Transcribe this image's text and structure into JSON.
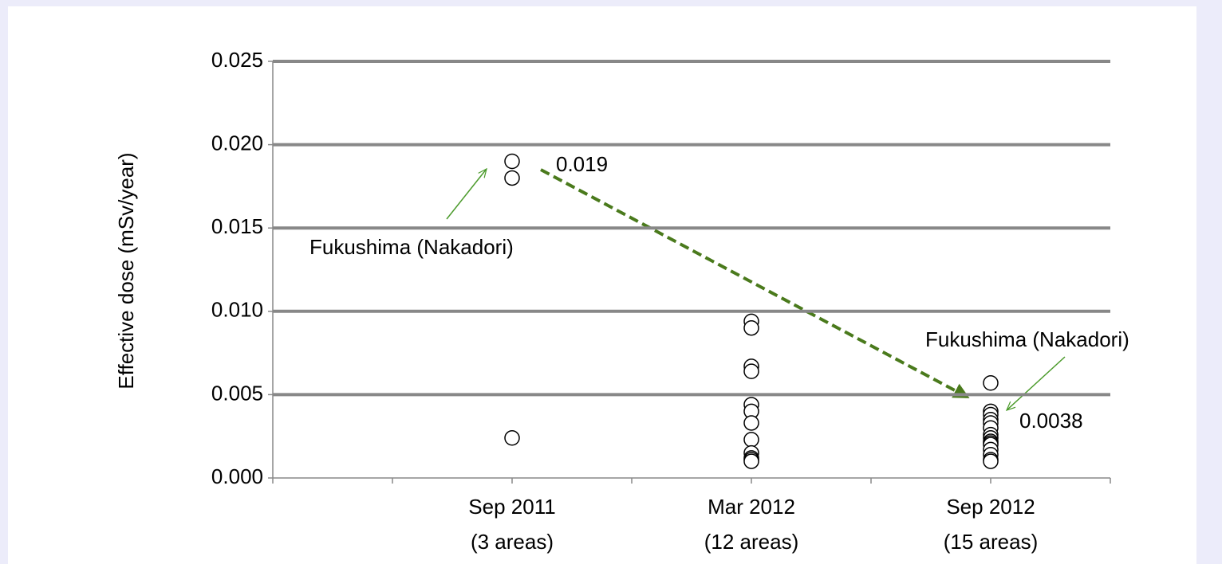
{
  "chart_data": {
    "type": "scatter",
    "y_label": "Effective dose    (mSv/year)",
    "categories": [
      null,
      null,
      [
        "Sep 2011",
        "(3 areas)"
      ],
      null,
      [
        "Mar 2012",
        "(12 areas)"
      ],
      null,
      [
        "Sep 2012",
        "(15 areas)"
      ],
      null
    ],
    "values": [
      [],
      [],
      [
        0.019,
        0.018,
        0.0024
      ],
      [],
      [
        0.0094,
        0.009,
        0.0067,
        0.0064,
        0.0044,
        0.004,
        0.0033,
        0.0023,
        0.0015,
        0.0012,
        0.0011,
        0.001
      ],
      [],
      [
        0.0057,
        0.004,
        0.0038,
        0.0035,
        0.0033,
        0.003,
        0.0026,
        0.0024,
        0.0022,
        0.0021,
        0.002,
        0.0017,
        0.0014,
        0.0011,
        0.001
      ],
      []
    ],
    "marker_color": "#000000",
    "ylim": [
      0,
      0.025
    ],
    "yticks": [
      {
        "value": 0,
        "label": "0.000"
      },
      0.005,
      {
        "value": 0.01,
        "label": "0.010"
      },
      0.015,
      {
        "value": 0.02,
        "label": "0.020"
      },
      0.025
    ],
    "grid": true,
    "annotations": [
      "0.019",
      "Fukushima (Nakadori)",
      "0.0038",
      "Fukushima (Nakadori)"
    ]
  }
}
